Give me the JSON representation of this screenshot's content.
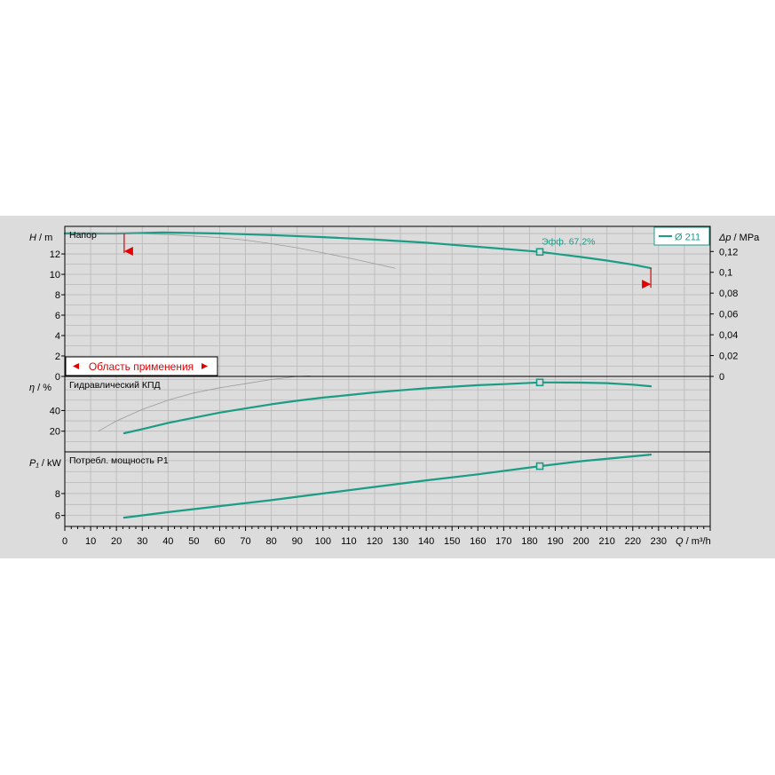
{
  "chart_data": {
    "type": "line",
    "x_axis": {
      "label": "Q / m³/h",
      "label_var": "Q",
      "label_unit": " / m³/h",
      "range": [
        0,
        250
      ],
      "ticks": [
        0,
        10,
        20,
        30,
        40,
        50,
        60,
        70,
        80,
        90,
        100,
        110,
        120,
        130,
        140,
        150,
        160,
        170,
        180,
        190,
        200,
        210,
        220,
        230
      ]
    },
    "panels": [
      {
        "id": "head",
        "title": "Напор",
        "ylabel_var": "H",
        "ylabel_unit": " / m",
        "yrange": [
          0,
          14.7
        ],
        "yticks": [
          0,
          2,
          4,
          6,
          8,
          10,
          12
        ],
        "right_axis": {
          "label_var": "Δp",
          "label_unit": " / MPa",
          "ticks": [
            "0",
            "0,02",
            "0,04",
            "0,06",
            "0,08",
            "0,1",
            "0,12"
          ]
        },
        "series": [
          {
            "name": "Ø 211",
            "color": "#1a9c87",
            "x": [
              0,
              10,
              20,
              30,
              38,
              50,
              60,
              80,
              100,
              120,
              140,
              160,
              184,
              200,
              210,
              220,
              227
            ],
            "y": [
              14.0,
              14.0,
              14.0,
              14.05,
              14.1,
              14.05,
              14.0,
              13.85,
              13.65,
              13.4,
              13.1,
              12.7,
              12.2,
              11.7,
              11.35,
              10.95,
              10.6
            ]
          },
          {
            "name": "",
            "color": "#9a9a9a",
            "width": 0.8,
            "x": [
              0,
              20,
              40,
              60,
              70,
              80,
              90,
              100,
              110,
              120,
              128
            ],
            "y": [
              14.1,
              14.05,
              13.9,
              13.6,
              13.35,
              13.0,
              12.6,
              12.1,
              11.6,
              11.05,
              10.6
            ]
          }
        ],
        "operating_point": {
          "x": 184,
          "y": 12.2,
          "label": "Эфф.  67,2%"
        },
        "range_markers": {
          "min_x": 23,
          "max_x": 227
        },
        "legend": {
          "text": "Ø 211"
        },
        "application_area_label": "Область применения"
      },
      {
        "id": "efficiency",
        "title": "Гидравлический КПД",
        "ylabel_var": "η",
        "ylabel_unit": " / %",
        "yrange": [
          0,
          73
        ],
        "yticks": [
          20,
          40
        ],
        "series": [
          {
            "name": "",
            "color": "#1a9c87",
            "x": [
              23,
              30,
              40,
              50,
              60,
              70,
              80,
              90,
              100,
              110,
              120,
              130,
              140,
              150,
              160,
              170,
              184,
              190,
              200,
              210,
              220,
              227
            ],
            "y": [
              18,
              22,
              28,
              33,
              38,
              42,
              46,
              49.5,
              52.5,
              55,
              57.5,
              59.5,
              61.5,
              63,
              64.5,
              65.5,
              67.2,
              67.2,
              67,
              66.5,
              65,
              63.5
            ]
          },
          {
            "name": "",
            "color": "#9a9a9a",
            "width": 0.8,
            "x": [
              13,
              20,
              30,
              40,
              50,
              60,
              70,
              80,
              90,
              95
            ],
            "y": [
              20,
              30,
              41,
              50,
              57,
              62,
              66,
              70,
              73,
              73.5
            ]
          }
        ],
        "operating_point": {
          "x": 184,
          "y": 67.2
        }
      },
      {
        "id": "power",
        "title": "Потребл. мощность P1",
        "ylabel_var": "P₁",
        "ylabel_unit": " / kW",
        "yrange": [
          5,
          11.8
        ],
        "yticks": [
          6,
          8
        ],
        "series": [
          {
            "name": "",
            "color": "#1a9c87",
            "x": [
              23,
              40,
              60,
              80,
              100,
              120,
              140,
              160,
              184,
              200,
              227
            ],
            "y": [
              5.8,
              6.3,
              6.85,
              7.4,
              8.0,
              8.6,
              9.2,
              9.75,
              10.5,
              10.95,
              11.55
            ]
          }
        ],
        "operating_point": {
          "x": 184,
          "y": 10.5
        }
      }
    ]
  }
}
